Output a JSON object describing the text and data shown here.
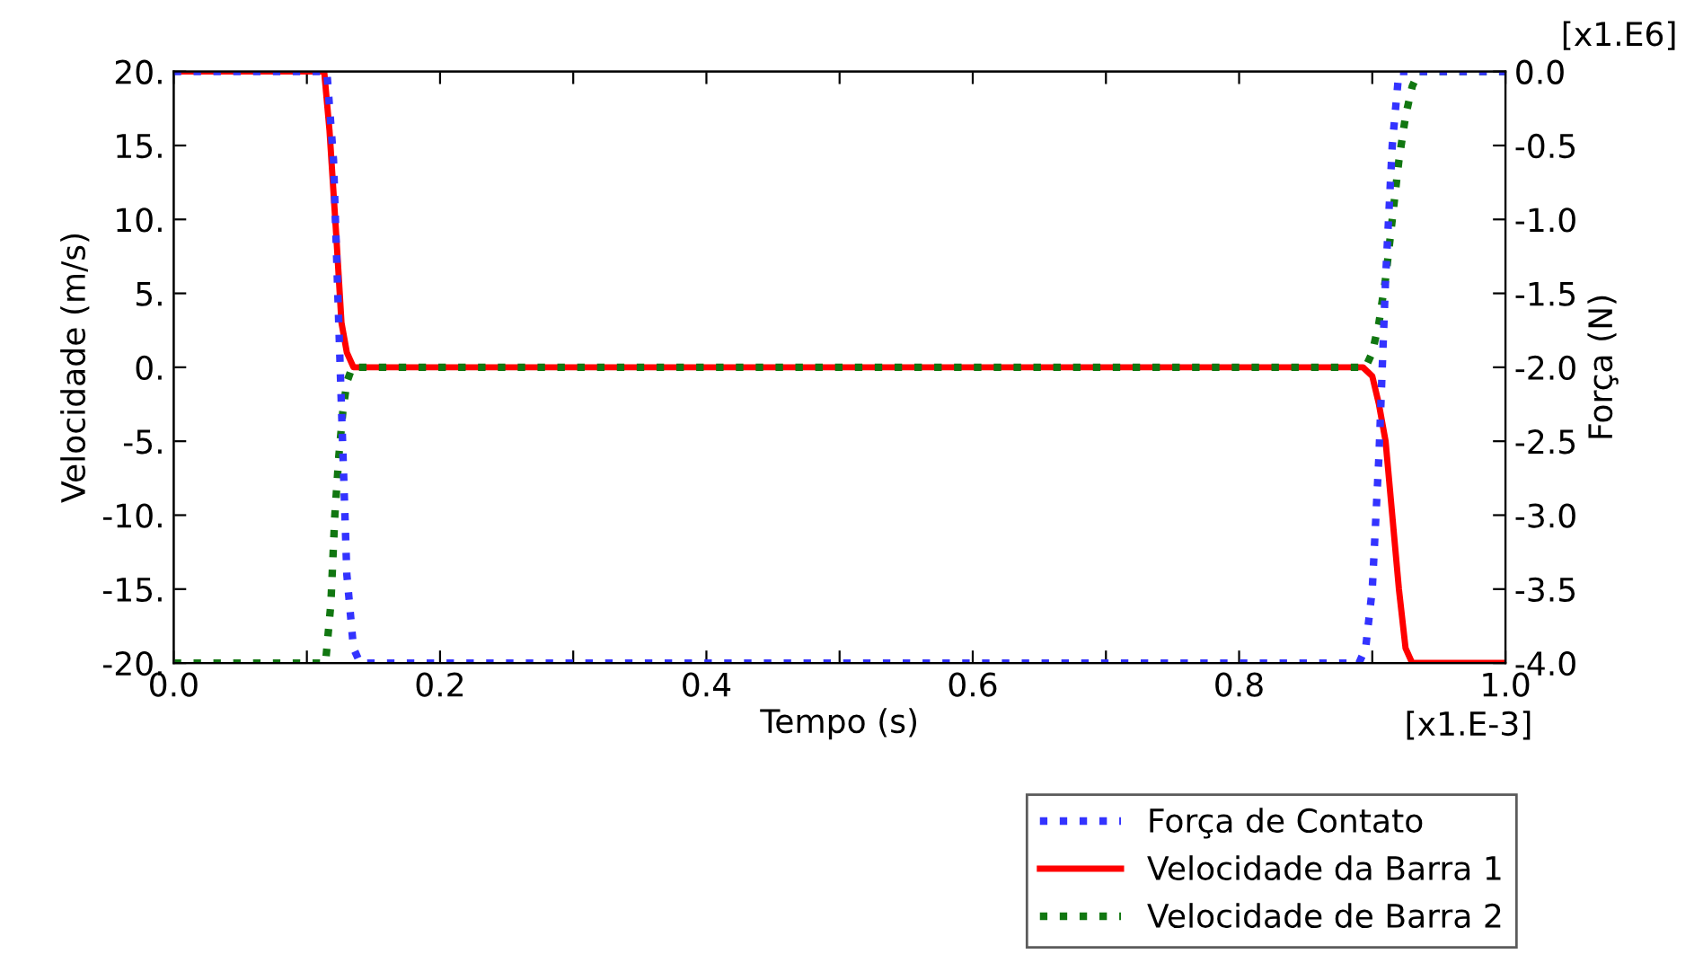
{
  "chart_data": {
    "type": "line",
    "xlabel": "Tempo (s)",
    "ylabel": "Velocidade (m/s)",
    "y2label": "Força (N)",
    "annotations": [
      "[x1.E6]",
      "[x1.E-3]"
    ],
    "xlim": [
      0,
      1.0
    ],
    "ylim": [
      -20,
      20
    ],
    "y2lim": [
      -4.0,
      0.0
    ],
    "xticks": [
      {
        "value": 0,
        "label": "0.0"
      },
      {
        "value": 0.1,
        "label": null
      },
      {
        "value": 0.2,
        "label": "0.2"
      },
      {
        "value": 0.3,
        "label": null
      },
      {
        "value": 0.4,
        "label": "0.4"
      },
      {
        "value": 0.5,
        "label": null
      },
      {
        "value": 0.6,
        "label": "0.6"
      },
      {
        "value": 0.7,
        "label": null
      },
      {
        "value": 0.8,
        "label": "0.8"
      },
      {
        "value": 0.9,
        "label": null
      },
      {
        "value": 1.0,
        "label": "1.0"
      }
    ],
    "yticks": [
      {
        "value": -20,
        "label": "-20."
      },
      {
        "value": -15,
        "label": "-15."
      },
      {
        "value": -10,
        "label": "-10."
      },
      {
        "value": -5,
        "label": "-5."
      },
      {
        "value": 0,
        "label": "0."
      },
      {
        "value": 5,
        "label": "5."
      },
      {
        "value": 10,
        "label": "10."
      },
      {
        "value": 15,
        "label": "15."
      },
      {
        "value": 20,
        "label": "20."
      }
    ],
    "y2ticks": [
      {
        "value": -4.0,
        "label": "-4.0"
      },
      {
        "value": -3.5,
        "label": "-3.5"
      },
      {
        "value": -3.0,
        "label": "-3.0"
      },
      {
        "value": -2.5,
        "label": "-2.5"
      },
      {
        "value": -2.0,
        "label": "-2.0"
      },
      {
        "value": -1.5,
        "label": "-1.5"
      },
      {
        "value": -1.0,
        "label": "-1.0"
      },
      {
        "value": -0.5,
        "label": "-0.5"
      },
      {
        "value": 0.0,
        "label": "0.0"
      }
    ],
    "legend": "bottom right",
    "grid": false,
    "series": [
      {
        "name": "Força de Contato",
        "color": "#3333ff",
        "axis": "y2",
        "line_style": "dotted",
        "x": [
          0,
          0.115,
          0.12,
          0.125,
          0.13,
          0.135,
          0.14,
          0.89,
          0.895,
          0.9,
          0.905,
          0.91,
          0.915,
          0.92,
          1.0
        ],
        "values": [
          0,
          0,
          -0.6,
          -2.0,
          -3.4,
          -3.9,
          -4.0,
          -4.0,
          -3.9,
          -3.5,
          -2.6,
          -1.4,
          -0.5,
          0,
          0
        ]
      },
      {
        "name": "Velocidade da Barra 1",
        "color": "#ff0000",
        "line_style": "solid",
        "x": [
          0,
          0.113,
          0.117,
          0.122,
          0.126,
          0.13,
          0.135,
          0.893,
          0.9,
          0.905,
          0.91,
          0.915,
          0.92,
          0.925,
          0.93,
          0.935,
          1.0
        ],
        "values": [
          20,
          20,
          16,
          9,
          3,
          1,
          0,
          0,
          -0.6,
          -2.5,
          -5,
          -10,
          -15,
          -19,
          -20,
          -20,
          -20
        ]
      },
      {
        "name": "Velocidade de Barra 2",
        "color": "#117711",
        "line_style": "dotted",
        "x": [
          0,
          0.114,
          0.118,
          0.121,
          0.124,
          0.127,
          0.13,
          0.134,
          0.895,
          0.9,
          0.905,
          0.91,
          0.915,
          0.92,
          0.925,
          0.93,
          0.935,
          1.0
        ],
        "values": [
          -20,
          -20,
          -16,
          -10,
          -6,
          -3,
          -1,
          0,
          0,
          1,
          3,
          6,
          10,
          14,
          17,
          19,
          20,
          20
        ]
      }
    ]
  }
}
